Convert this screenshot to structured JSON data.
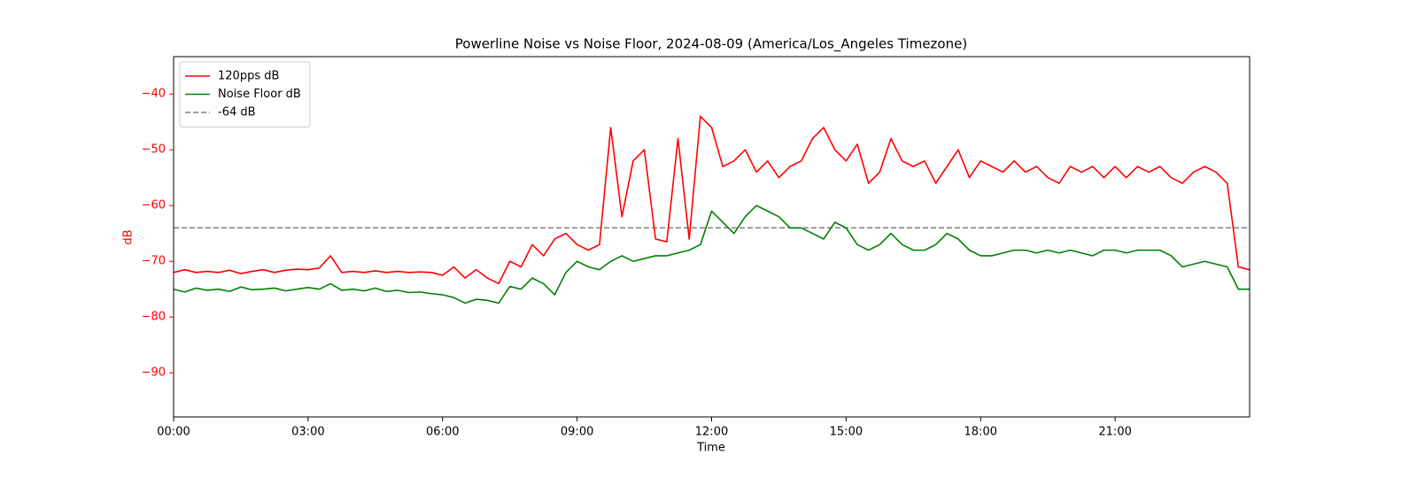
{
  "chart_data": {
    "type": "line",
    "title": "Powerline Noise vs Noise Floor, 2024-08-09 (America/Los_Angeles Timezone)",
    "xlabel": "Time",
    "ylabel": "dB",
    "ylabel_color": "#ff0000",
    "ytick_color": "#ff0000",
    "xlim": [
      0,
      24
    ],
    "ylim": [
      -97.9,
      -33.3
    ],
    "xticks": [
      {
        "value": 0,
        "label": "00:00"
      },
      {
        "value": 3,
        "label": "03:00"
      },
      {
        "value": 6,
        "label": "06:00"
      },
      {
        "value": 9,
        "label": "09:00"
      },
      {
        "value": 12,
        "label": "12:00"
      },
      {
        "value": 15,
        "label": "15:00"
      },
      {
        "value": 18,
        "label": "18:00"
      },
      {
        "value": 21,
        "label": "21:00"
      }
    ],
    "yticks": [
      {
        "value": -90,
        "label": "−90"
      },
      {
        "value": -80,
        "label": "−80"
      },
      {
        "value": -70,
        "label": "−70"
      },
      {
        "value": -60,
        "label": "−60"
      },
      {
        "value": -50,
        "label": "−50"
      },
      {
        "value": -40,
        "label": "−40"
      }
    ],
    "legend": "upper left",
    "grid": false,
    "x": [
      0,
      0.25,
      0.5,
      0.75,
      1,
      1.25,
      1.5,
      1.75,
      2,
      2.25,
      2.5,
      2.75,
      3,
      3.25,
      3.5,
      3.75,
      4,
      4.25,
      4.5,
      4.75,
      5,
      5.25,
      5.5,
      5.75,
      6,
      6.25,
      6.5,
      6.75,
      7,
      7.25,
      7.5,
      7.75,
      8,
      8.25,
      8.5,
      8.75,
      9,
      9.25,
      9.5,
      9.75,
      10,
      10.25,
      10.5,
      10.75,
      11,
      11.25,
      11.5,
      11.75,
      12,
      12.25,
      12.5,
      12.75,
      13,
      13.25,
      13.5,
      13.75,
      14,
      14.25,
      14.5,
      14.75,
      15,
      15.25,
      15.5,
      15.75,
      16,
      16.25,
      16.5,
      16.75,
      17,
      17.25,
      17.5,
      17.75,
      18,
      18.25,
      18.5,
      18.75,
      19,
      19.25,
      19.5,
      19.75,
      20,
      20.25,
      20.5,
      20.75,
      21,
      21.25,
      21.5,
      21.75,
      22,
      22.25,
      22.5,
      22.75,
      23,
      23.25,
      23.5,
      23.75,
      24
    ],
    "series": [
      {
        "name": "120pps dB",
        "color": "#ff0000",
        "values": [
          -72,
          -71.5,
          -72,
          -71.8,
          -72,
          -71.6,
          -72.2,
          -71.8,
          -71.5,
          -72,
          -71.6,
          -71.4,
          -71.5,
          -71.2,
          -69,
          -72,
          -71.8,
          -72,
          -71.7,
          -72,
          -71.8,
          -72,
          -71.9,
          -72,
          -72.5,
          -71,
          -73,
          -71.5,
          -73,
          -74,
          -70,
          -71,
          -67,
          -69,
          -66,
          -65,
          -67,
          -68,
          -67,
          -46,
          -62,
          -52,
          -50,
          -66,
          -66.5,
          -48,
          -66,
          -44,
          -46,
          -53,
          -52,
          -50,
          -54,
          -52,
          -55,
          -53,
          -52,
          -48,
          -46,
          -50,
          -52,
          -49,
          -56,
          -54,
          -48,
          -52,
          -53,
          -52,
          -56,
          -53,
          -50,
          -55,
          -52,
          -53,
          -54,
          -52,
          -54,
          -53,
          -55,
          -56,
          -53,
          -54,
          -53,
          -55,
          -53,
          -55,
          -53,
          -54,
          -53,
          -55,
          -56,
          -54,
          -53,
          -54,
          -56,
          -71,
          -71.5
        ]
      },
      {
        "name": "Noise Floor dB",
        "color": "#008000",
        "values": [
          -75,
          -75.5,
          -74.8,
          -75.2,
          -75,
          -75.4,
          -74.6,
          -75.1,
          -75,
          -74.8,
          -75.3,
          -75,
          -74.7,
          -75,
          -74,
          -75.2,
          -75,
          -75.3,
          -74.8,
          -75.4,
          -75.2,
          -75.6,
          -75.5,
          -75.8,
          -76,
          -76.5,
          -77.5,
          -76.8,
          -77,
          -77.5,
          -74.5,
          -75,
          -73,
          -74,
          -76,
          -72,
          -70,
          -71,
          -71.5,
          -70,
          -69,
          -70,
          -69.5,
          -69,
          -69,
          -68.5,
          -68,
          -67,
          -61,
          -63,
          -65,
          -62,
          -60,
          -61,
          -62,
          -64,
          -64,
          -65,
          -66,
          -63,
          -64,
          -67,
          -68,
          -67,
          -65,
          -67,
          -68,
          -68,
          -67,
          -65,
          -66,
          -68,
          -69,
          -69,
          -68.5,
          -68,
          -68,
          -68.5,
          -68,
          -68.5,
          -68,
          -68.5,
          -69,
          -68,
          -68,
          -68.5,
          -68,
          -68,
          -68,
          -69,
          -71,
          -70.5,
          -70,
          -70.5,
          -71,
          -75,
          -75
        ]
      }
    ],
    "hlines": [
      {
        "name": "-64 dB",
        "value": -64,
        "color": "#808080",
        "dash": true
      }
    ]
  }
}
